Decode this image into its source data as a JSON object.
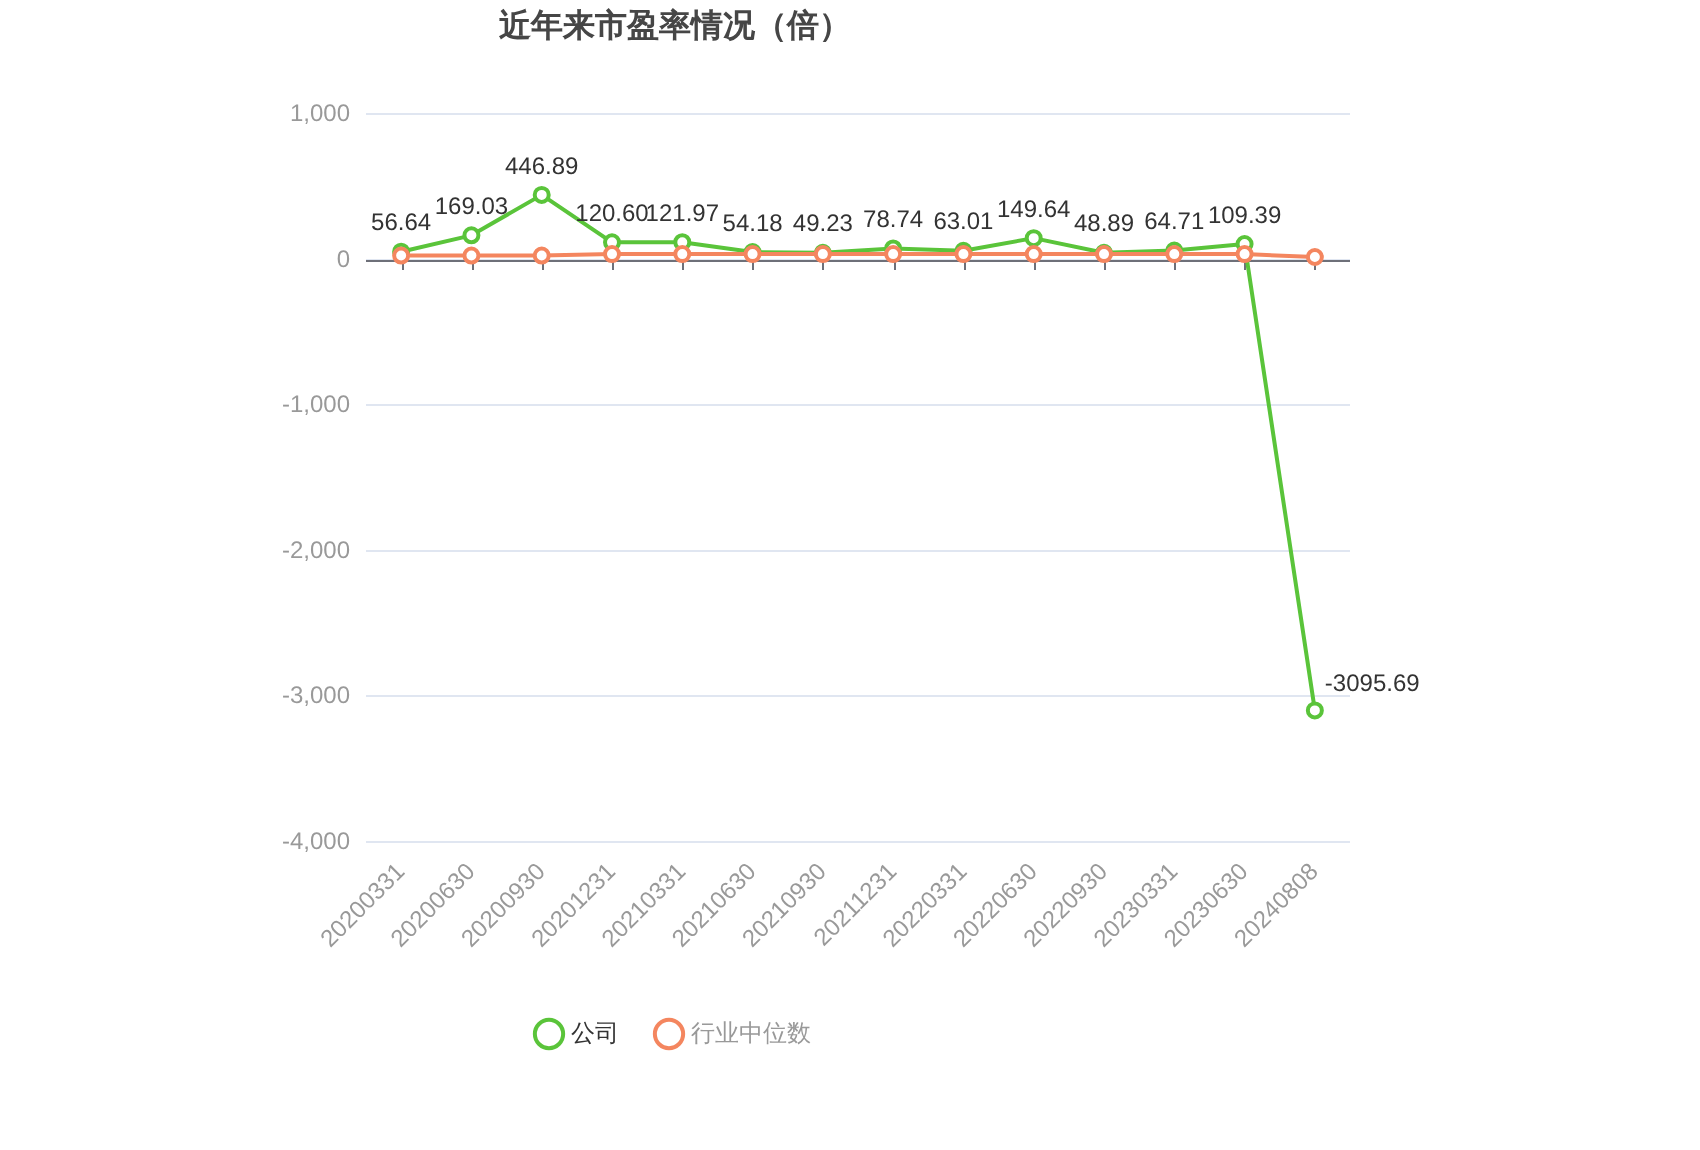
{
  "chart_data": {
    "type": "line",
    "title": "近年来市盈率情况（倍）",
    "categories": [
      "20200331",
      "20200630",
      "20200930",
      "20201231",
      "20210331",
      "20210630",
      "20210930",
      "20211231",
      "20220331",
      "20220630",
      "20220930",
      "20230331",
      "20230630",
      "20240808"
    ],
    "series": [
      {
        "name": "公司",
        "color": "#5ac43a",
        "values": [
          56.64,
          169.03,
          446.89,
          120.6,
          121.97,
          54.18,
          49.23,
          78.74,
          63.01,
          149.64,
          48.89,
          64.71,
          109.39,
          -3095.69
        ],
        "value_labels": [
          "56.64",
          "169.03",
          "446.89",
          "120.60",
          "121.97",
          "54.18",
          "49.23",
          "78.74",
          "63.01",
          "149.64",
          "48.89",
          "64.71",
          "109.39",
          "-3095.69"
        ]
      },
      {
        "name": "行业中位数",
        "color": "#f4865f",
        "values": [
          30,
          30,
          30,
          40,
          40,
          40,
          40,
          40,
          40,
          40,
          40,
          40,
          40,
          20
        ]
      }
    ],
    "ylim": [
      -4000,
      1000
    ],
    "yticks": [
      {
        "value": -4000,
        "label": "-4,000"
      },
      {
        "value": -3000,
        "label": "-3,000"
      },
      {
        "value": -2000,
        "label": "-2,000"
      },
      {
        "value": -1000,
        "label": "-1,000"
      },
      0,
      {
        "value": 1000,
        "label": "1,000"
      }
    ],
    "grid": "y",
    "legend": "bottom",
    "marker": "circle",
    "line_style": "solid"
  }
}
